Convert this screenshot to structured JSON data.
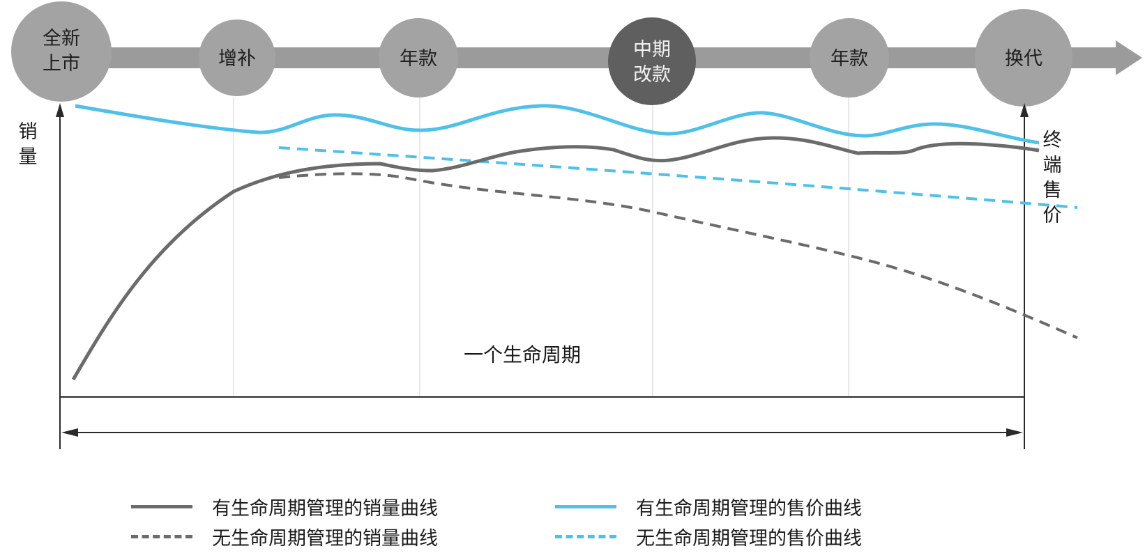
{
  "colors": {
    "band": "#9b9b9b",
    "milestone": "#a3a3a3",
    "milestone_dark": "#5f5f5f",
    "sales": "#6b6b6b",
    "price": "#4fc0ea",
    "axis": "#2a2a2a"
  },
  "timeline": {
    "milestones": [
      {
        "lines": [
          "全新",
          "上市"
        ],
        "style": "light"
      },
      {
        "lines": [
          "增补"
        ],
        "style": "light"
      },
      {
        "lines": [
          "年款"
        ],
        "style": "light"
      },
      {
        "lines": [
          "中期",
          "改款"
        ],
        "style": "dark"
      },
      {
        "lines": [
          "年款"
        ],
        "style": "light"
      },
      {
        "lines": [
          "换代"
        ],
        "style": "light"
      }
    ]
  },
  "axes": {
    "left_label": [
      "销",
      "量"
    ],
    "right_label": [
      "终",
      "端",
      "售",
      "价"
    ]
  },
  "period_label": "一个生命周期",
  "legend": {
    "sales_managed": "有生命周期管理的销量曲线",
    "sales_unmanaged": "无生命周期管理的销量曲线",
    "price_managed": "有生命周期管理的售价曲线",
    "price_unmanaged": "无生命周期管理的售价曲线"
  }
}
